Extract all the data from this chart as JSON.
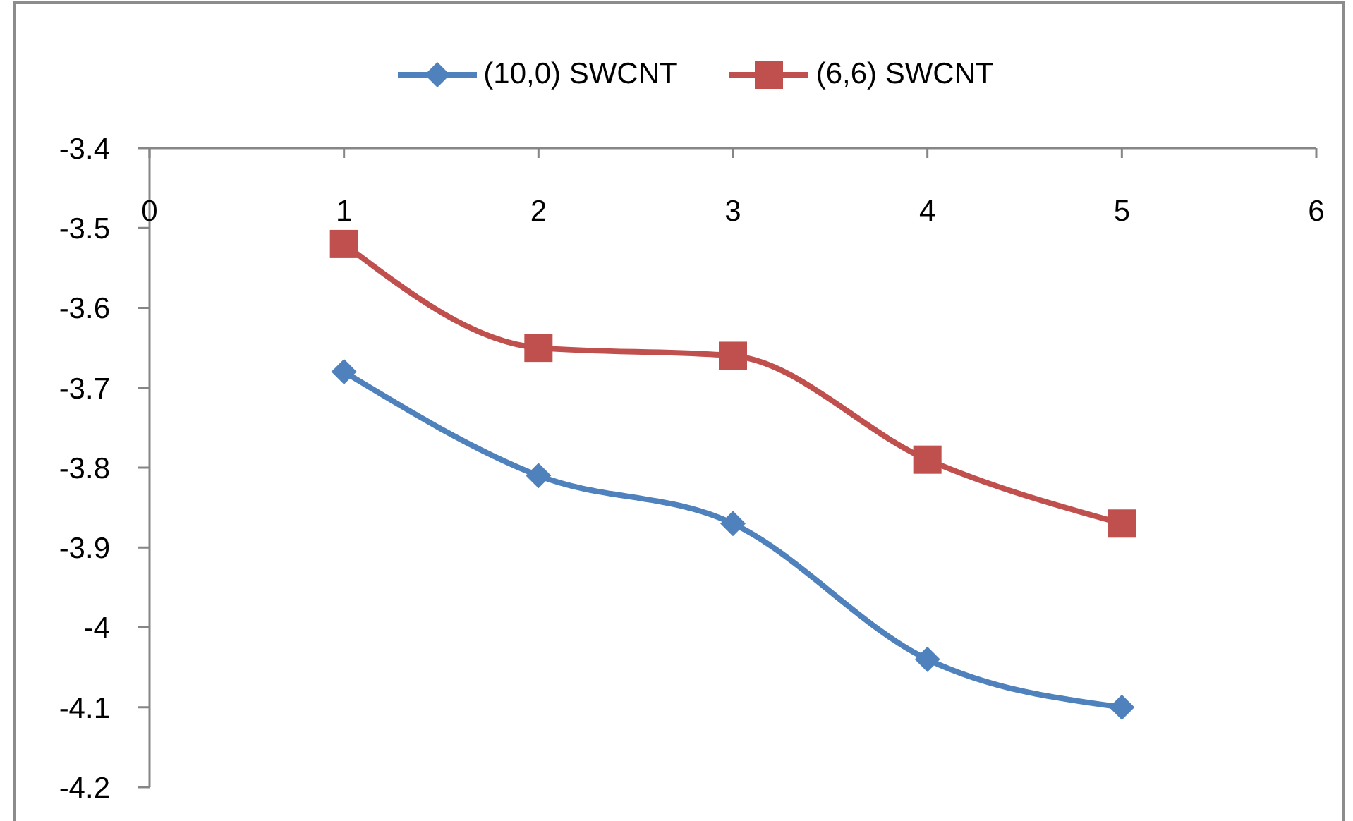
{
  "chart_data": {
    "type": "line",
    "x": [
      1,
      2,
      3,
      4,
      5
    ],
    "series": [
      {
        "name": "(10,0) SWCNT",
        "color": "#4f81bd",
        "marker": "diamond",
        "values": [
          -3.68,
          -3.81,
          -3.87,
          -4.04,
          -4.1
        ]
      },
      {
        "name": "(6,6) SWCNT",
        "color": "#c0504d",
        "marker": "square",
        "values": [
          -3.52,
          -3.65,
          -3.66,
          -3.79,
          -3.87
        ]
      }
    ],
    "xlim": [
      0,
      6
    ],
    "xticks": [
      0,
      1,
      2,
      3,
      4,
      5,
      6
    ],
    "ylim": [
      -4.2,
      -3.4
    ],
    "yticks": [
      -4.2,
      -4.1,
      -4,
      -3.9,
      -3.8,
      -3.7,
      -3.6,
      -3.5,
      -3.4
    ],
    "grid": false,
    "legend": "top",
    "line_style": "solid"
  }
}
